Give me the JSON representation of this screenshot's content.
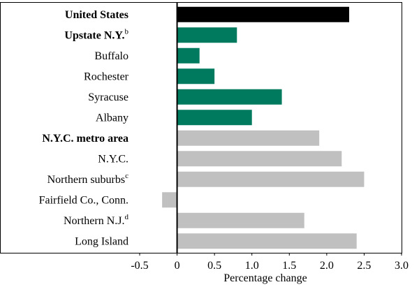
{
  "chart_data": {
    "type": "bar",
    "orientation": "horizontal",
    "categories": [
      {
        "label": "United States",
        "sup": "",
        "bold": true
      },
      {
        "label": "Upstate N.Y.",
        "sup": "b",
        "bold": true
      },
      {
        "label": "Buffalo",
        "sup": "",
        "bold": false
      },
      {
        "label": "Rochester",
        "sup": "",
        "bold": false
      },
      {
        "label": "Syracuse",
        "sup": "",
        "bold": false
      },
      {
        "label": "Albany",
        "sup": "",
        "bold": false
      },
      {
        "label": "N.Y.C. metro area",
        "sup": "",
        "bold": true
      },
      {
        "label": "N.Y.C.",
        "sup": "",
        "bold": false
      },
      {
        "label": "Northern suburbs",
        "sup": "c",
        "bold": false
      },
      {
        "label": "Fairfield Co., Conn.",
        "sup": "",
        "bold": false
      },
      {
        "label": "Northern N.J.",
        "sup": "d",
        "bold": false
      },
      {
        "label": "Long Island",
        "sup": "",
        "bold": false
      }
    ],
    "values": [
      2.3,
      0.8,
      0.3,
      0.5,
      1.4,
      1.0,
      1.9,
      2.2,
      2.5,
      -0.2,
      1.7,
      2.4
    ],
    "bar_colors": [
      "#000000",
      "#007a5e",
      "#007a5e",
      "#007a5e",
      "#007a5e",
      "#007a5e",
      "#c0c0c0",
      "#c0c0c0",
      "#c0c0c0",
      "#c0c0c0",
      "#c0c0c0",
      "#c0c0c0"
    ],
    "xlabel": "Percentage change",
    "xlim": [
      -0.5,
      3.0
    ],
    "xticks": [
      "-0.5",
      "0",
      "0.5",
      "1.0",
      "1.5",
      "2.0",
      "2.5",
      "3.0"
    ],
    "grid": false,
    "legend": "none"
  }
}
